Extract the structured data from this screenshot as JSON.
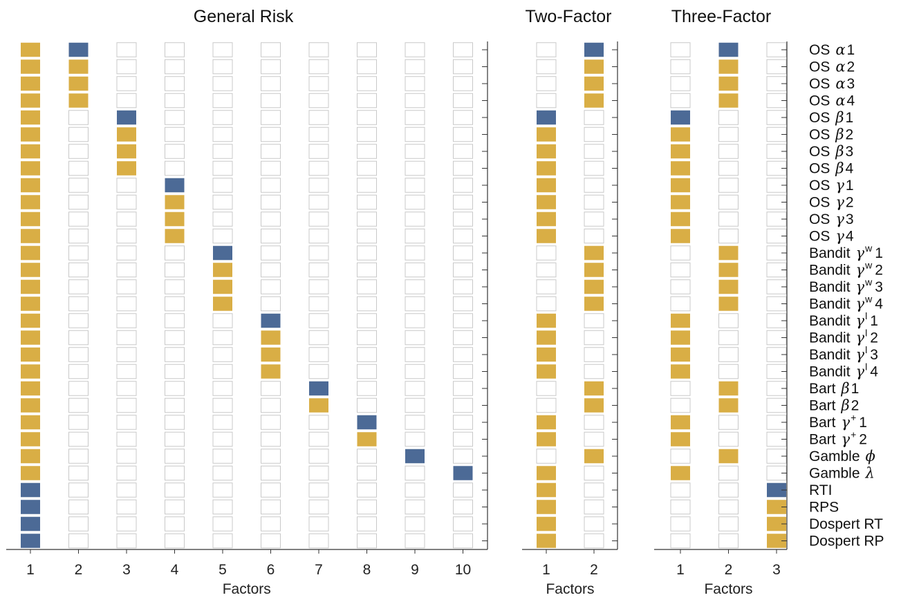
{
  "colors": {
    "primary": "#4c6a96",
    "secondary": "#d9ae45",
    "empty_fill": "#ffffff",
    "empty_stroke": "#c8c8c8",
    "axis": "#333333"
  },
  "chart_data": {
    "type": "heatmap",
    "row_labels": [
      {
        "prefix": "OS",
        "sym": "α",
        "sup": "",
        "num": "1"
      },
      {
        "prefix": "OS",
        "sym": "α",
        "sup": "",
        "num": "2"
      },
      {
        "prefix": "OS",
        "sym": "α",
        "sup": "",
        "num": "3"
      },
      {
        "prefix": "OS",
        "sym": "α",
        "sup": "",
        "num": "4"
      },
      {
        "prefix": "OS",
        "sym": "β",
        "sup": "",
        "num": "1"
      },
      {
        "prefix": "OS",
        "sym": "β",
        "sup": "",
        "num": "2"
      },
      {
        "prefix": "OS",
        "sym": "β",
        "sup": "",
        "num": "3"
      },
      {
        "prefix": "OS",
        "sym": "β",
        "sup": "",
        "num": "4"
      },
      {
        "prefix": "OS",
        "sym": "γ",
        "sup": "",
        "num": "1"
      },
      {
        "prefix": "OS",
        "sym": "γ",
        "sup": "",
        "num": "2"
      },
      {
        "prefix": "OS",
        "sym": "γ",
        "sup": "",
        "num": "3"
      },
      {
        "prefix": "OS",
        "sym": "γ",
        "sup": "",
        "num": "4"
      },
      {
        "prefix": "Bandit",
        "sym": "γ",
        "sup": "w",
        "num": "1"
      },
      {
        "prefix": "Bandit",
        "sym": "γ",
        "sup": "w",
        "num": "2"
      },
      {
        "prefix": "Bandit",
        "sym": "γ",
        "sup": "w",
        "num": "3"
      },
      {
        "prefix": "Bandit",
        "sym": "γ",
        "sup": "w",
        "num": "4"
      },
      {
        "prefix": "Bandit",
        "sym": "γ",
        "sup": "l",
        "num": "1"
      },
      {
        "prefix": "Bandit",
        "sym": "γ",
        "sup": "l",
        "num": "2"
      },
      {
        "prefix": "Bandit",
        "sym": "γ",
        "sup": "l",
        "num": "3"
      },
      {
        "prefix": "Bandit",
        "sym": "γ",
        "sup": "l",
        "num": "4"
      },
      {
        "prefix": "Bart",
        "sym": "β",
        "sup": "",
        "num": "1"
      },
      {
        "prefix": "Bart",
        "sym": "β",
        "sup": "",
        "num": "2"
      },
      {
        "prefix": "Bart",
        "sym": "γ",
        "sup": "+",
        "num": "1"
      },
      {
        "prefix": "Bart",
        "sym": "γ",
        "sup": "+",
        "num": "2"
      },
      {
        "prefix": "Gamble",
        "sym": "ϕ",
        "sup": "",
        "num": ""
      },
      {
        "prefix": "Gamble",
        "sym": "λ",
        "sup": "",
        "num": ""
      },
      {
        "prefix": "RTI",
        "sym": "",
        "sup": "",
        "num": ""
      },
      {
        "prefix": "RPS",
        "sym": "",
        "sup": "",
        "num": ""
      },
      {
        "prefix": "Dospert RT",
        "sym": "",
        "sup": "",
        "num": ""
      },
      {
        "prefix": "Dospert RP",
        "sym": "",
        "sup": "",
        "num": ""
      }
    ],
    "legend_note": "cell values: 0 = empty, 1 = blue (primary), 2 = gold (secondary)",
    "panels": [
      {
        "title": "General Risk",
        "xlabel": "Factors",
        "factors": [
          "1",
          "2",
          "3",
          "4",
          "5",
          "6",
          "7",
          "8",
          "9",
          "10"
        ],
        "cells": [
          [
            2,
            1,
            0,
            0,
            0,
            0,
            0,
            0,
            0,
            0
          ],
          [
            2,
            2,
            0,
            0,
            0,
            0,
            0,
            0,
            0,
            0
          ],
          [
            2,
            2,
            0,
            0,
            0,
            0,
            0,
            0,
            0,
            0
          ],
          [
            2,
            2,
            0,
            0,
            0,
            0,
            0,
            0,
            0,
            0
          ],
          [
            2,
            0,
            1,
            0,
            0,
            0,
            0,
            0,
            0,
            0
          ],
          [
            2,
            0,
            2,
            0,
            0,
            0,
            0,
            0,
            0,
            0
          ],
          [
            2,
            0,
            2,
            0,
            0,
            0,
            0,
            0,
            0,
            0
          ],
          [
            2,
            0,
            2,
            0,
            0,
            0,
            0,
            0,
            0,
            0
          ],
          [
            2,
            0,
            0,
            1,
            0,
            0,
            0,
            0,
            0,
            0
          ],
          [
            2,
            0,
            0,
            2,
            0,
            0,
            0,
            0,
            0,
            0
          ],
          [
            2,
            0,
            0,
            2,
            0,
            0,
            0,
            0,
            0,
            0
          ],
          [
            2,
            0,
            0,
            2,
            0,
            0,
            0,
            0,
            0,
            0
          ],
          [
            2,
            0,
            0,
            0,
            1,
            0,
            0,
            0,
            0,
            0
          ],
          [
            2,
            0,
            0,
            0,
            2,
            0,
            0,
            0,
            0,
            0
          ],
          [
            2,
            0,
            0,
            0,
            2,
            0,
            0,
            0,
            0,
            0
          ],
          [
            2,
            0,
            0,
            0,
            2,
            0,
            0,
            0,
            0,
            0
          ],
          [
            2,
            0,
            0,
            0,
            0,
            1,
            0,
            0,
            0,
            0
          ],
          [
            2,
            0,
            0,
            0,
            0,
            2,
            0,
            0,
            0,
            0
          ],
          [
            2,
            0,
            0,
            0,
            0,
            2,
            0,
            0,
            0,
            0
          ],
          [
            2,
            0,
            0,
            0,
            0,
            2,
            0,
            0,
            0,
            0
          ],
          [
            2,
            0,
            0,
            0,
            0,
            0,
            1,
            0,
            0,
            0
          ],
          [
            2,
            0,
            0,
            0,
            0,
            0,
            2,
            0,
            0,
            0
          ],
          [
            2,
            0,
            0,
            0,
            0,
            0,
            0,
            1,
            0,
            0
          ],
          [
            2,
            0,
            0,
            0,
            0,
            0,
            0,
            2,
            0,
            0
          ],
          [
            2,
            0,
            0,
            0,
            0,
            0,
            0,
            0,
            1,
            0
          ],
          [
            2,
            0,
            0,
            0,
            0,
            0,
            0,
            0,
            0,
            1
          ],
          [
            1,
            0,
            0,
            0,
            0,
            0,
            0,
            0,
            0,
            0
          ],
          [
            1,
            0,
            0,
            0,
            0,
            0,
            0,
            0,
            0,
            0
          ],
          [
            1,
            0,
            0,
            0,
            0,
            0,
            0,
            0,
            0,
            0
          ],
          [
            1,
            0,
            0,
            0,
            0,
            0,
            0,
            0,
            0,
            0
          ]
        ]
      },
      {
        "title": "Two-Factor",
        "xlabel": "Factors",
        "factors": [
          "1",
          "2"
        ],
        "cells": [
          [
            0,
            1
          ],
          [
            0,
            2
          ],
          [
            0,
            2
          ],
          [
            0,
            2
          ],
          [
            1,
            0
          ],
          [
            2,
            0
          ],
          [
            2,
            0
          ],
          [
            2,
            0
          ],
          [
            2,
            0
          ],
          [
            2,
            0
          ],
          [
            2,
            0
          ],
          [
            2,
            0
          ],
          [
            0,
            2
          ],
          [
            0,
            2
          ],
          [
            0,
            2
          ],
          [
            0,
            2
          ],
          [
            2,
            0
          ],
          [
            2,
            0
          ],
          [
            2,
            0
          ],
          [
            2,
            0
          ],
          [
            0,
            2
          ],
          [
            0,
            2
          ],
          [
            2,
            0
          ],
          [
            2,
            0
          ],
          [
            0,
            2
          ],
          [
            2,
            0
          ],
          [
            2,
            0
          ],
          [
            2,
            0
          ],
          [
            2,
            0
          ],
          [
            2,
            0
          ]
        ]
      },
      {
        "title": "Three-Factor",
        "xlabel": "Factors",
        "factors": [
          "1",
          "2",
          "3"
        ],
        "cells": [
          [
            0,
            1,
            0
          ],
          [
            0,
            2,
            0
          ],
          [
            0,
            2,
            0
          ],
          [
            0,
            2,
            0
          ],
          [
            1,
            0,
            0
          ],
          [
            2,
            0,
            0
          ],
          [
            2,
            0,
            0
          ],
          [
            2,
            0,
            0
          ],
          [
            2,
            0,
            0
          ],
          [
            2,
            0,
            0
          ],
          [
            2,
            0,
            0
          ],
          [
            2,
            0,
            0
          ],
          [
            0,
            2,
            0
          ],
          [
            0,
            2,
            0
          ],
          [
            0,
            2,
            0
          ],
          [
            0,
            2,
            0
          ],
          [
            2,
            0,
            0
          ],
          [
            2,
            0,
            0
          ],
          [
            2,
            0,
            0
          ],
          [
            2,
            0,
            0
          ],
          [
            0,
            2,
            0
          ],
          [
            0,
            2,
            0
          ],
          [
            2,
            0,
            0
          ],
          [
            2,
            0,
            0
          ],
          [
            0,
            2,
            0
          ],
          [
            2,
            0,
            0
          ],
          [
            0,
            0,
            1
          ],
          [
            0,
            0,
            2
          ],
          [
            0,
            0,
            2
          ],
          [
            0,
            0,
            2
          ]
        ]
      }
    ]
  }
}
